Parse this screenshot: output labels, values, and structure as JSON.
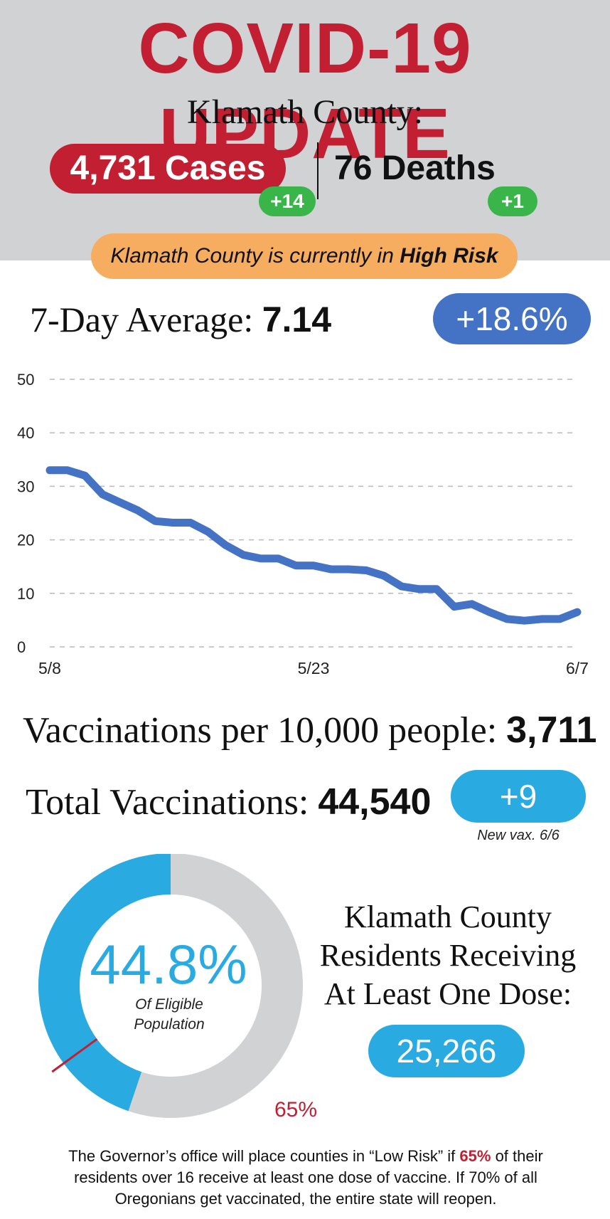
{
  "header": {
    "title": "COVID-19 UPDATE",
    "county": "Klamath County:",
    "cases": "4,731 Cases",
    "cases_delta": "+14",
    "deaths": "76 Deaths",
    "deaths_delta": "+1"
  },
  "risk": {
    "prefix": "Klamath County is currently in ",
    "level": "High Risk",
    "color": "#f6ad5f"
  },
  "seven_day": {
    "label": "7-Day Average: ",
    "value": "7.14",
    "change": "+18.6%"
  },
  "chart_data": {
    "type": "line",
    "title": "",
    "xlabel": "",
    "ylabel": "",
    "ylim": [
      0,
      50
    ],
    "yticks": [
      "0",
      "10",
      "20",
      "30",
      "40",
      "50"
    ],
    "xtick_labels": [
      "5/8",
      "5/23",
      "6/7"
    ],
    "grid": true,
    "grid_style": "dashed",
    "line_color": "#4472c4",
    "series": [
      {
        "values": [
          33,
          33,
          32,
          28.5,
          27,
          25.5,
          23.5,
          23.2,
          23.2,
          21.5,
          19,
          17.2,
          16.5,
          16.5,
          15.2,
          15.2,
          14.5,
          14.5,
          14.3,
          13.3,
          11.3,
          10.8,
          10.8,
          7.5,
          8,
          6.5,
          5.2,
          4.9,
          5.2,
          5.2,
          6.5
        ]
      }
    ]
  },
  "vaccinations": {
    "per_10k_label": "Vaccinations per 10,000 people: ",
    "per_10k_value": "3,711",
    "total_label": "Total Vaccinations: ",
    "total_value": "44,540",
    "new_vax": "+9",
    "new_vax_note": "New vax. 6/6"
  },
  "dose": {
    "percent": 44.8,
    "percent_label": "44.8%",
    "sub_label": "Of Eligible Population",
    "threshold": 65,
    "threshold_label": "65%",
    "residents_line1": "Klamath County",
    "residents_line2": "Residents Receiving",
    "residents_line3": "At Least One Dose:",
    "residents_value": "25,266"
  },
  "footer": {
    "part1": "The Governor’s office will place counties in “Low Risk” if ",
    "highlight": "65%",
    "part2": " of their residents over 16 receive at least one dose of vaccine. If 70% of all Oregonians get vaccinated, the entire state will reopen."
  }
}
